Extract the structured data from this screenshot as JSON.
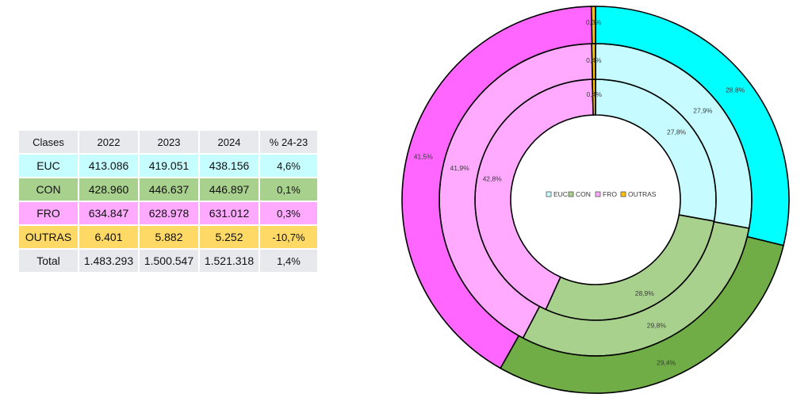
{
  "table": {
    "headers": [
      "Clases",
      "2022",
      "2023",
      "2024",
      "% 24-23"
    ],
    "rows": [
      {
        "key": "euc",
        "cells": [
          "EUC",
          "413.086",
          "419.051",
          "438.156",
          "4,6%"
        ],
        "bg": "#C6FDFF"
      },
      {
        "key": "con",
        "cells": [
          "CON",
          "428.960",
          "446.637",
          "446.897",
          "0,1%"
        ],
        "bg": "#A9D18E"
      },
      {
        "key": "fro",
        "cells": [
          "FRO",
          "634.847",
          "628.978",
          "631.012",
          "0,3%"
        ],
        "bg": "#FFAAFF"
      },
      {
        "key": "outras",
        "cells": [
          "OUTRAS",
          "6.401",
          "5.882",
          "5.252",
          "-10,7%"
        ],
        "bg": "#FFD966"
      },
      {
        "key": "total",
        "cells": [
          "Total",
          "1.483.293",
          "1.500.547",
          "1.521.318",
          "1,4%"
        ],
        "bg": "#E7E9EC"
      }
    ],
    "header_bg": "#E7E9EC"
  },
  "chart_data": {
    "type": "pie",
    "subtype": "multi-ring donut",
    "categories": [
      "EUC",
      "CON",
      "FRO",
      "OUTRAS"
    ],
    "legend_position": "center",
    "series": [
      {
        "name": "2022",
        "ring": "inner",
        "values": [
          413086,
          428960,
          634847,
          6401
        ],
        "labels": [
          "27,8%",
          "28,9%",
          "42,8%",
          "0,4%"
        ]
      },
      {
        "name": "2023",
        "ring": "middle",
        "values": [
          419051,
          446637,
          628978,
          5882
        ],
        "labels": [
          "27,9%",
          "29,8%",
          "41,9%",
          "0,4%"
        ]
      },
      {
        "name": "2024",
        "ring": "outer",
        "values": [
          438156,
          446897,
          631012,
          5252
        ],
        "labels": [
          "28,8%",
          "29,4%",
          "41,5%",
          "0,3%"
        ]
      }
    ],
    "ring_colors": {
      "outer": [
        "#00FFFF",
        "#70AD47",
        "#FF66FF",
        "#FFC000"
      ],
      "middle": [
        "#C6FCFF",
        "#A9D18E",
        "#FFAAFF",
        "#FFC000"
      ],
      "inner": [
        "#C6FCFF",
        "#A9D18E",
        "#FFAAFF",
        "#FFC000"
      ]
    },
    "legend_swatch_colors": [
      "#C6FCFF",
      "#A9D18E",
      "#FFAAFF",
      "#FFC000"
    ]
  }
}
